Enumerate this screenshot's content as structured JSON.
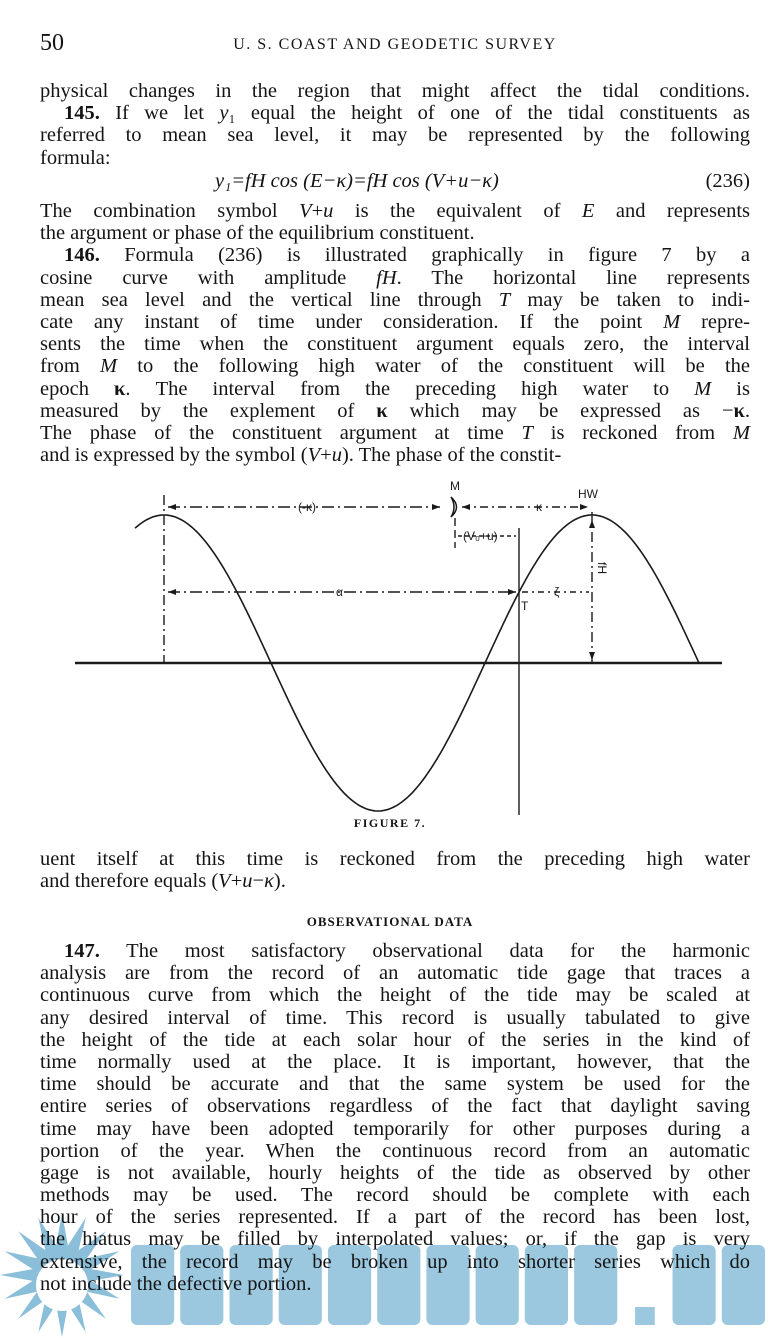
{
  "header": {
    "page_number": "50",
    "running_title": "U. S. COAST AND GEODETIC SURVEY"
  },
  "block1": [
    "physical changes in the region that might affect the tidal conditions.",
    "<b>145.</b> If we let <i>y</i>₁ equal the height of one of the tidal constituents as",
    "referred to mean sea level, it may be represented by the following",
    "formula:"
  ],
  "formula": {
    "text": "y₁=fH cos (E−κ)=fH cos (V+u−κ)",
    "number": "(236)"
  },
  "block2": [
    "The combination symbol <i>V</i>+<i>u</i> is the equivalent of <i>E</i> and represents",
    "the argument or phase of the equilibrium constituent.",
    "<b>146.</b> Formula (236) is illustrated graphically in figure 7 by a",
    "cosine curve with amplitude <i>fH</i>. The horizontal line represents",
    "mean sea level and the vertical line through <i>T</i> may be taken to indi-",
    "cate any instant of time under consideration. If the point <i>M</i> repre-",
    "sents the time when the constituent argument equals zero, the interval",
    "from <i>M</i> to the following high water of the constituent will be the",
    "epoch <b>κ</b>. The interval from the preceding high water to <i>M</i> is",
    "measured by the explement of <b>κ</b> which may be expressed as −<b>κ</b>.",
    "The phase of the constituent argument at time <i>T</i> is reckoned from <i>M</i>",
    "and is expressed by the symbol (<i>V</i>+<i>u</i>). The phase of the constit-"
  ],
  "figure": {
    "labels": {
      "m": "M",
      "hw": "HW",
      "neg_kappa": "(-κ)",
      "kappa": "κ",
      "vou": "(V₀+u)",
      "alpha": "α",
      "zeta": "ζ",
      "t": "T",
      "fh": "fH"
    },
    "caption": "FIGURE 7."
  },
  "block3": [
    "uent itself at this time is reckoned from the preceding high water",
    "and therefore equals (<i>V</i>+<i>u</i>−<i>κ</i>)."
  ],
  "section_heading": "OBSERVATIONAL DATA",
  "block4": [
    "<b>147.</b> The most satisfactory observational data for the harmonic",
    "analysis are from the record of an automatic tide gage that traces a",
    "continuous curve from which the height of the tide may be scaled at",
    "any desired interval of time. This record is usually tabulated to give",
    "the height of the tide at each solar hour of the series in the kind of",
    "time normally used at the place. It is important, however, that the",
    "time should be accurate and that the same system be used for the",
    "entire series of observations regardless of the fact that daylight saving",
    "time may have been adopted temporarily for other purposes during a",
    "portion of the year. When the continuous record from an automatic",
    "gage is not available, hourly heights of the tide as observed by other",
    "methods may be used. The record should be complete with each",
    "hour of the series represented. If a part of the record has been lost,",
    "the hiatus may be filled by interpolated values; or, if the gap is very",
    "extensive, the record may be broken up into shorter series which do",
    "not include the defective portion."
  ],
  "watermark": {
    "text": "SEATRACKER.RU",
    "color": "#5aa3c9"
  }
}
